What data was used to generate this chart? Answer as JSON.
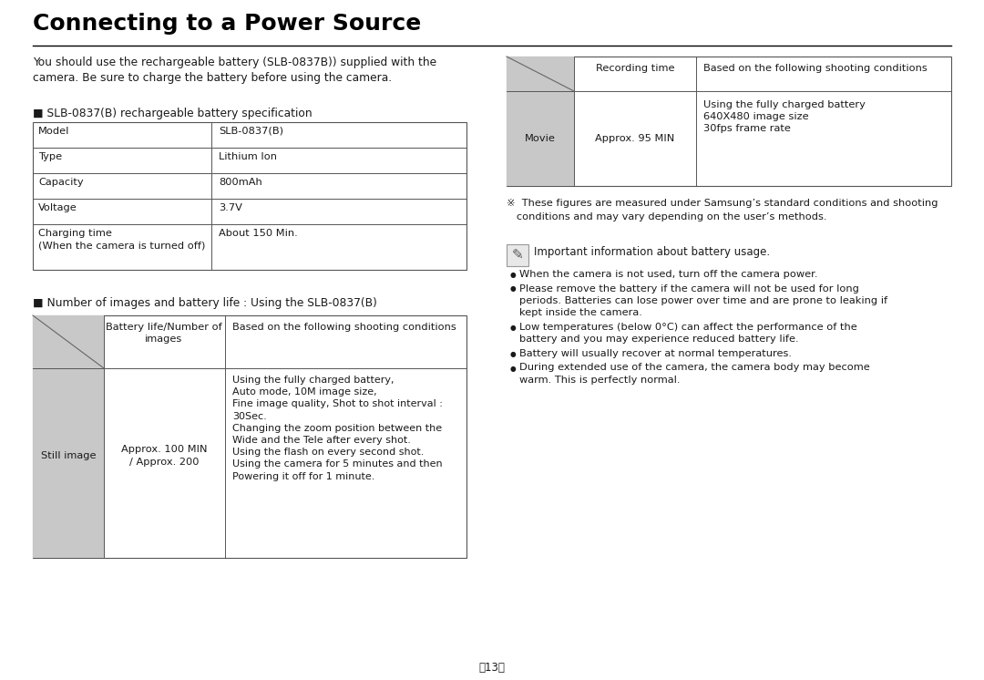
{
  "title": "Connecting to a Power Source",
  "bg_color": "#ffffff",
  "text_color": "#000000",
  "gray_cell": "#c8c8c8",
  "intro_text": "You should use the rechargeable battery (SLB-0837B)) supplied with the\ncamera. Be sure to charge the battery before using the camera.",
  "battery_spec_title": "■ SLB-0837(B) rechargeable battery specification",
  "battery_spec_rows": [
    [
      "Model",
      "SLB-0837(B)"
    ],
    [
      "Type",
      "Lithium Ion"
    ],
    [
      "Capacity",
      "800mAh"
    ],
    [
      "Voltage",
      "3.7V"
    ],
    [
      "Charging time\n(When the camera is turned off)",
      "About 150 Min."
    ]
  ],
  "images_title": "■ Number of images and battery life : Using the SLB-0837(B)",
  "images_header_col2": "Battery life/Number of\nimages",
  "images_header_col3": "Based on the following shooting conditions",
  "images_row_label": "Still image",
  "images_row_value": "Approx. 100 MIN\n/ Approx. 200",
  "images_row_conditions": "Using the fully charged battery,\nAuto mode, 10M image size,\nFine image quality, Shot to shot interval :\n30Sec.\nChanging the zoom position between the\nWide and the Tele after every shot.\nUsing the flash on every second shot.\nUsing the camera for 5 minutes and then\nPowering it off for 1 minute.",
  "rec_header_col2": "Recording time",
  "rec_header_col3": "Based on the following shooting conditions",
  "rec_row_label": "Movie",
  "rec_row_value": "Approx. 95 MIN",
  "rec_row_conditions": "Using the fully charged battery\n640X480 image size\n30fps frame rate",
  "footnote_line1": "※  These figures are measured under Samsung’s standard conditions and shooting",
  "footnote_line2": "   conditions and may vary depending on the user’s methods.",
  "info_title": "Important information about battery usage.",
  "info_bullets": [
    "When the camera is not used, turn off the camera power.",
    "Please remove the battery if the camera will not be used for long\nperiods. Batteries can lose power over time and are prone to leaking if\nkept inside the camera.",
    "Low temperatures (below 0°C) can affect the performance of the\nbattery and you may experience reduced battery life.",
    "Battery will usually recover at normal temperatures.",
    "During extended use of the camera, the camera body may become\nwarm. This is perfectly normal."
  ],
  "page_number": "＜13＞"
}
